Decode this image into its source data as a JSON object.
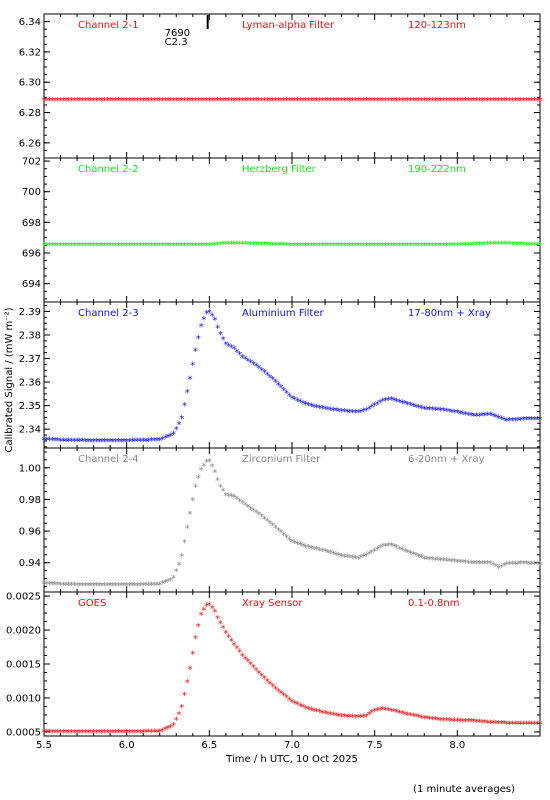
{
  "chart_data": {
    "type": "scatter",
    "x_axis": {
      "label": "Time / h UTC, 10 Oct 2025",
      "range": [
        5.5,
        8.5
      ],
      "ticks": [
        "5.5",
        "6.0",
        "6.5",
        "7.0",
        "7.5",
        "8.0"
      ]
    },
    "ylabel": "Calibrated Signal / (mW m⁻²)",
    "footnote": "(1 minute averages)",
    "event_marker": {
      "x": 6.49,
      "line1": "7690",
      "line2": "C2.3"
    },
    "panels": [
      {
        "channel": "Channel 2-1",
        "filter": "Lyman-alpha Filter",
        "band": "120-123nm",
        "color": "#ee1111",
        "ylim": [
          6.25,
          6.345
        ],
        "ticks": [
          "6.26",
          "6.28",
          "6.30",
          "6.32",
          "6.34"
        ],
        "series": {
          "x": [
            5.5,
            6.0,
            6.5,
            7.0,
            7.5,
            8.0,
            8.5
          ],
          "y": [
            6.288,
            6.288,
            6.288,
            6.288,
            6.288,
            6.288,
            6.288
          ]
        }
      },
      {
        "channel": "Channel 2-2",
        "filter": "Herzberg Filter",
        "band": "190-222nm",
        "color": "#11ee11",
        "ylim": [
          692.8,
          702.2
        ],
        "ticks": [
          "694",
          "696",
          "698",
          "700",
          "702"
        ],
        "series": {
          "x": [
            5.5,
            6.0,
            6.5,
            6.6,
            7.0,
            7.5,
            8.0,
            8.25,
            8.5
          ],
          "y": [
            696.5,
            696.5,
            696.5,
            696.6,
            696.5,
            696.5,
            696.5,
            696.6,
            696.5
          ]
        }
      },
      {
        "channel": "Channel 2-3",
        "filter": "Aluminium Filter",
        "band": "17-80nm + Xray",
        "color": "#1111ee",
        "ylim": [
          2.332,
          2.394
        ],
        "ticks": [
          "2.34",
          "2.35",
          "2.36",
          "2.37",
          "2.38",
          "2.39"
        ],
        "series": {
          "x": [
            5.5,
            5.6,
            5.8,
            6.0,
            6.2,
            6.28,
            6.33,
            6.38,
            6.42,
            6.45,
            6.48,
            6.5,
            6.53,
            6.56,
            6.6,
            6.65,
            6.7,
            6.8,
            6.9,
            7.0,
            7.1,
            7.2,
            7.3,
            7.4,
            7.45,
            7.5,
            7.55,
            7.6,
            7.7,
            7.8,
            7.9,
            8.0,
            8.1,
            8.2,
            8.3,
            8.4,
            8.5
          ],
          "y": [
            2.3355,
            2.335,
            2.3348,
            2.3348,
            2.3352,
            2.3375,
            2.3435,
            2.36,
            2.3745,
            2.3835,
            2.389,
            2.3895,
            2.387,
            2.381,
            2.376,
            2.374,
            2.3705,
            2.366,
            2.36,
            2.353,
            2.35,
            2.3485,
            2.3475,
            2.347,
            2.348,
            2.35,
            2.352,
            2.3525,
            2.3505,
            2.3485,
            2.348,
            2.347,
            2.3455,
            2.346,
            2.3435,
            2.344,
            2.344
          ]
        }
      },
      {
        "channel": "Channel 2-4",
        "filter": "Zirconium Filter",
        "band": "6-20nm + Xray",
        "color": "#888888",
        "ylim": [
          0.9215,
          1.0125
        ],
        "ticks": [
          "0.94",
          "0.96",
          "0.98",
          "1.00"
        ],
        "series": {
          "x": [
            5.5,
            5.6,
            5.8,
            6.0,
            6.2,
            6.28,
            6.33,
            6.38,
            6.42,
            6.45,
            6.48,
            6.5,
            6.53,
            6.56,
            6.6,
            6.65,
            6.7,
            6.8,
            6.9,
            7.0,
            7.1,
            7.2,
            7.3,
            7.4,
            7.45,
            7.5,
            7.55,
            7.6,
            7.7,
            7.8,
            7.9,
            8.0,
            8.1,
            8.2,
            8.25,
            8.3,
            8.4,
            8.5
          ],
          "y": [
            0.9265,
            0.926,
            0.9255,
            0.9255,
            0.926,
            0.9295,
            0.942,
            0.969,
            0.9895,
            0.9985,
            1.0035,
            1.004,
            0.998,
            0.989,
            0.9825,
            0.9815,
            0.9775,
            0.9705,
            0.962,
            0.953,
            0.9495,
            0.947,
            0.944,
            0.9425,
            0.9445,
            0.9475,
            0.9505,
            0.951,
            0.9465,
            0.9425,
            0.9415,
            0.9405,
            0.9395,
            0.9395,
            0.9365,
            0.939,
            0.9395,
            0.939
          ]
        }
      },
      {
        "channel": "GOES",
        "filter": "Xray Sensor",
        "band": "0.1-0.8nm",
        "color": "#ee1111",
        "ylim": [
          0.00044,
          0.00256
        ],
        "ticks": [
          "0.0005",
          "0.0010",
          "0.0015",
          "0.0020",
          "0.0025"
        ],
        "series": {
          "x": [
            5.5,
            5.6,
            5.8,
            6.0,
            6.2,
            6.28,
            6.33,
            6.38,
            6.42,
            6.45,
            6.48,
            6.5,
            6.53,
            6.56,
            6.6,
            6.65,
            6.7,
            6.8,
            6.9,
            7.0,
            7.1,
            7.2,
            7.3,
            7.4,
            7.45,
            7.5,
            7.55,
            7.6,
            7.7,
            7.8,
            7.9,
            8.0,
            8.1,
            8.2,
            8.3,
            8.4,
            8.5
          ],
          "y": [
            0.0005,
            0.00049,
            0.00049,
            0.00049,
            0.0005,
            0.00058,
            0.00082,
            0.00138,
            0.00192,
            0.00222,
            0.00235,
            0.00237,
            0.00228,
            0.00212,
            0.00196,
            0.00178,
            0.00162,
            0.00136,
            0.00113,
            0.00094,
            0.00083,
            0.00077,
            0.00073,
            0.00071,
            0.00073,
            0.00081,
            0.00083,
            0.00081,
            0.00075,
            0.0007,
            0.00067,
            0.00066,
            0.00065,
            0.00063,
            0.00062,
            0.00062,
            0.00062
          ]
        }
      }
    ]
  }
}
